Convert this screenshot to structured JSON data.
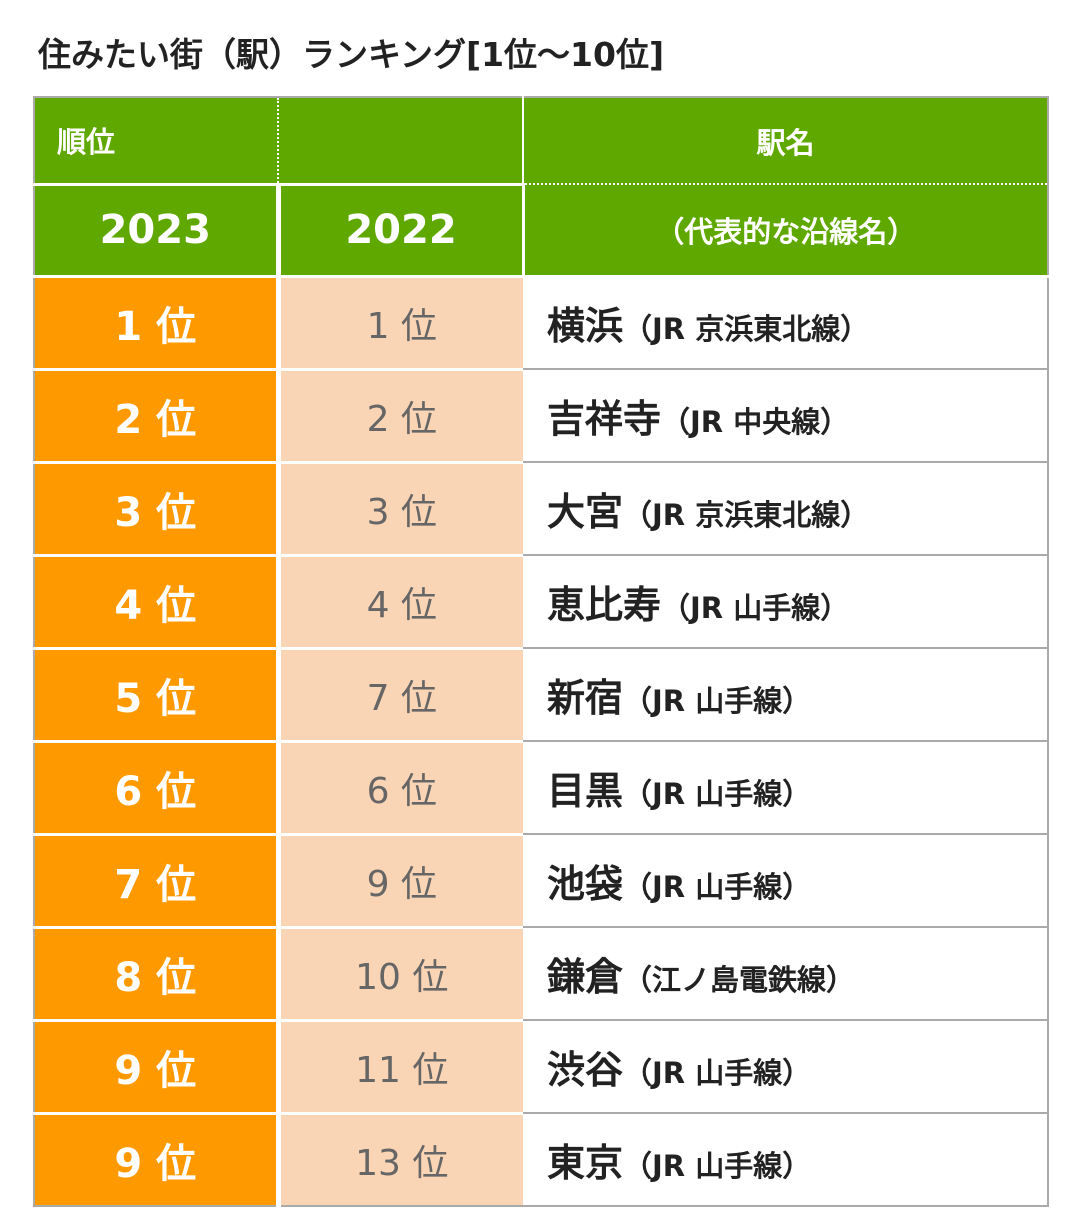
{
  "title": "住みたい街（駅）ランキング[1位～10位]",
  "table": {
    "header": {
      "rank": "順位",
      "station": "駅名",
      "year_current": "2023",
      "year_previous": "2022",
      "line_note": "（代表的な沿線名）"
    },
    "rows": [
      {
        "rank_2023": "1 位",
        "rank_2022": "1 位",
        "station": "横浜",
        "line": "（JR 京浜東北線）"
      },
      {
        "rank_2023": "2 位",
        "rank_2022": "2 位",
        "station": "吉祥寺",
        "line": "（JR 中央線）"
      },
      {
        "rank_2023": "3 位",
        "rank_2022": "3 位",
        "station": "大宮",
        "line": "（JR 京浜東北線）"
      },
      {
        "rank_2023": "4 位",
        "rank_2022": "4 位",
        "station": "恵比寿",
        "line": "（JR 山手線）"
      },
      {
        "rank_2023": "5 位",
        "rank_2022": "7 位",
        "station": "新宿",
        "line": "（JR 山手線）"
      },
      {
        "rank_2023": "6 位",
        "rank_2022": "6 位",
        "station": "目黒",
        "line": "（JR 山手線）"
      },
      {
        "rank_2023": "7 位",
        "rank_2022": "9 位",
        "station": "池袋",
        "line": "（JR 山手線）"
      },
      {
        "rank_2023": "8 位",
        "rank_2022": "10 位",
        "station": "鎌倉",
        "line": "（江ノ島電鉄線）"
      },
      {
        "rank_2023": "9 位",
        "rank_2022": "11 位",
        "station": "渋谷",
        "line": "（JR 山手線）"
      },
      {
        "rank_2023": "9 位",
        "rank_2022": "13 位",
        "station": "東京",
        "line": "（JR 山手線）"
      }
    ]
  }
}
